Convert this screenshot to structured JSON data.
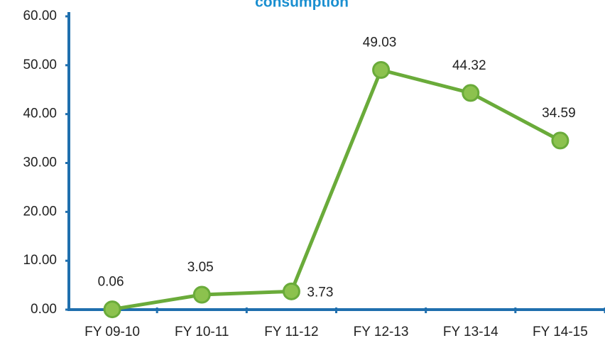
{
  "chart_data": {
    "type": "line",
    "title": "consumption",
    "categories": [
      "FY 09-10",
      "FY 10-11",
      "FY 11-12",
      "FY 12-13",
      "FY 13-14",
      "FY 14-15"
    ],
    "values": [
      0.06,
      3.05,
      3.73,
      49.03,
      44.32,
      34.59
    ],
    "color": "#6aab3a",
    "axis_color": "#1f6fae",
    "ylim": [
      0,
      60
    ],
    "yticks": [
      {
        "value": 0,
        "label": "0.00"
      },
      {
        "value": 10,
        "label": "10.00"
      },
      {
        "value": 20,
        "label": "20.00"
      },
      {
        "value": 30,
        "label": "30.00"
      },
      {
        "value": 40,
        "label": "40.00"
      },
      {
        "value": 50,
        "label": "50.00"
      },
      {
        "value": 60,
        "label": "60.00"
      }
    ]
  }
}
